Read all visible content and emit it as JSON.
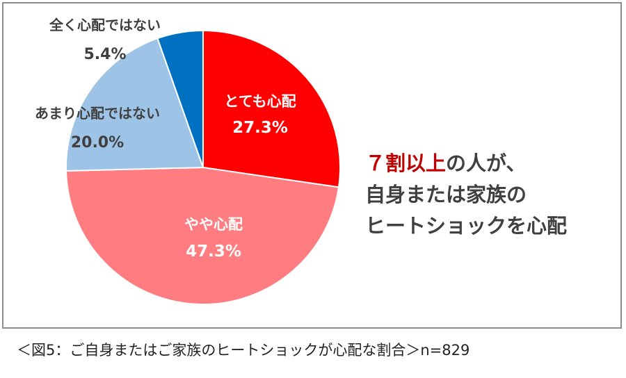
{
  "chart_data": {
    "type": "pie",
    "slices": [
      {
        "label": "とても心配",
        "value": 27.3,
        "display": "27.3%",
        "color": "#ff0000",
        "text_color": "#ffffff"
      },
      {
        "label": "やや心配",
        "value": 47.3,
        "display": "47.3%",
        "color": "#ff7c80",
        "text_color": "#ffffff"
      },
      {
        "label": "あまり心配ではない",
        "value": 20.0,
        "display": "20.0%",
        "color": "#9dc3e6",
        "text_color": "#404040"
      },
      {
        "label": "全く心配ではない",
        "value": 5.4,
        "display": "5.4%",
        "color": "#0070c0",
        "text_color": "#404040"
      }
    ],
    "start_angle_deg": 0,
    "direction": "clockwise",
    "legend": "none"
  },
  "callout": {
    "highlight": "７割以上",
    "line1_rest": "の人が、",
    "line2": "自身または家族の",
    "line3": "ヒートショックを心配"
  },
  "caption": "＜図5：ご自身またはご家族のヒートショックが心配な割合＞n=829"
}
